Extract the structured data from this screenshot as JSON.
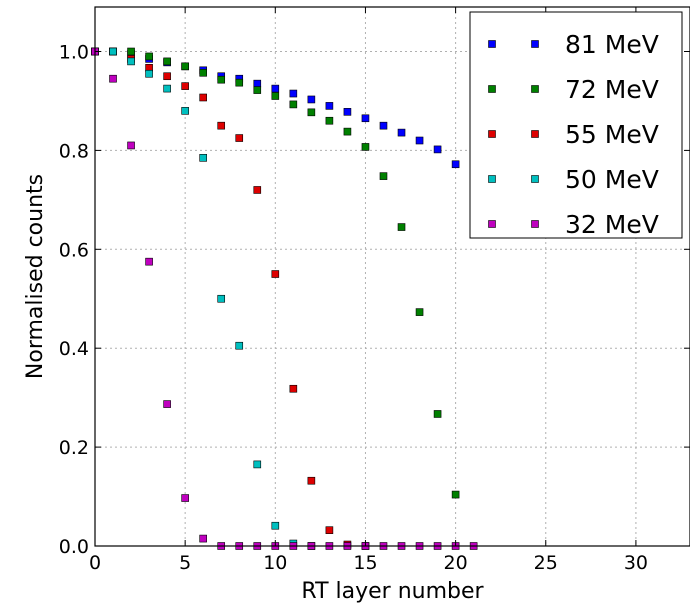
{
  "chart_data": {
    "type": "scatter",
    "title": "",
    "xlabel": "RT layer number",
    "ylabel": "Normalised counts",
    "xlim": [
      0,
      33
    ],
    "ylim": [
      0,
      1.09
    ],
    "x_ticks": [
      0,
      5,
      10,
      15,
      20,
      25,
      30
    ],
    "x_tick_labels": [
      "0",
      "5",
      "10",
      "15",
      "20",
      "25",
      "30"
    ],
    "y_ticks": [
      0.0,
      0.2,
      0.4,
      0.6,
      0.8,
      1.0
    ],
    "y_tick_labels": [
      "0.0",
      "0.2",
      "0.4",
      "0.6",
      "0.8",
      "1.0"
    ],
    "grid": true,
    "legend_position": "top-right",
    "marker": "square",
    "series": [
      {
        "name": "81 MeV",
        "color": "#0000ff",
        "x": [
          0,
          1,
          2,
          3,
          4,
          5,
          6,
          7,
          8,
          9,
          10,
          11,
          12,
          13,
          14,
          15,
          16,
          17,
          18,
          19,
          20
        ],
        "y": [
          1.0,
          1.0,
          0.995,
          0.985,
          0.978,
          0.97,
          0.962,
          0.95,
          0.945,
          0.935,
          0.925,
          0.915,
          0.903,
          0.89,
          0.878,
          0.865,
          0.85,
          0.836,
          0.82,
          0.802,
          0.772
        ]
      },
      {
        "name": "72 MeV",
        "color": "#008000",
        "x": [
          0,
          1,
          2,
          3,
          4,
          5,
          6,
          7,
          8,
          9,
          10,
          11,
          12,
          13,
          14,
          15,
          16,
          17,
          18,
          19,
          20
        ],
        "y": [
          1.0,
          1.0,
          1.0,
          0.99,
          0.98,
          0.97,
          0.957,
          0.943,
          0.937,
          0.922,
          0.91,
          0.893,
          0.877,
          0.86,
          0.838,
          0.807,
          0.748,
          0.645,
          0.473,
          0.267,
          0.104
        ]
      },
      {
        "name": "55 MeV",
        "color": "#dd0000",
        "x": [
          0,
          1,
          2,
          3,
          4,
          5,
          6,
          7,
          8,
          9,
          10,
          11,
          12,
          13,
          14,
          15
        ],
        "y": [
          1.0,
          1.0,
          0.985,
          0.967,
          0.95,
          0.93,
          0.907,
          0.85,
          0.825,
          0.72,
          0.55,
          0.318,
          0.132,
          0.032,
          0.003,
          0.0
        ]
      },
      {
        "name": "50 MeV",
        "color": "#00bfbf",
        "x": [
          0,
          1,
          2,
          3,
          4,
          5,
          6,
          7,
          8,
          9,
          10,
          11,
          12
        ],
        "y": [
          1.0,
          1.0,
          0.98,
          0.955,
          0.925,
          0.88,
          0.785,
          0.5,
          0.405,
          0.165,
          0.041,
          0.005,
          0.0
        ]
      },
      {
        "name": "32 MeV",
        "color": "#bf00bf",
        "x": [
          0,
          1,
          2,
          3,
          4,
          5,
          6,
          7,
          8,
          9,
          10,
          11,
          12,
          13,
          14,
          15,
          16,
          17,
          18,
          19,
          20,
          21
        ],
        "y": [
          1.0,
          0.945,
          0.81,
          0.575,
          0.287,
          0.097,
          0.015,
          0.0,
          0.0,
          0.0,
          0.0,
          0.0,
          0.0,
          0.0,
          0.0,
          0.0,
          0.0,
          0.0,
          0.0,
          0.0,
          0.0,
          0.0
        ]
      }
    ]
  }
}
